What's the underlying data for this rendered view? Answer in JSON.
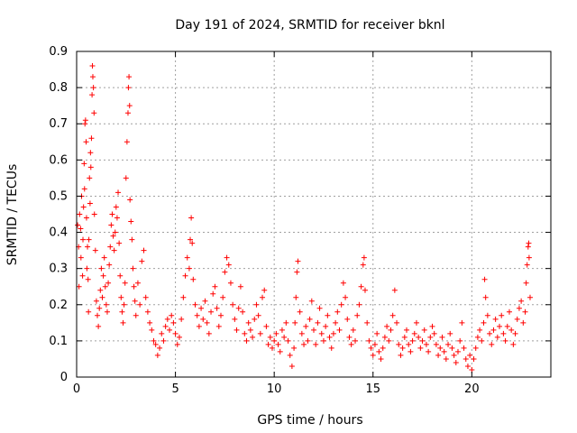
{
  "chart_data": {
    "type": "scatter",
    "title": "Day 191 of 2024, SRMTID for receiver bknl",
    "xlabel": "GPS time / hours",
    "ylabel": "SRMTID / TECUs",
    "xlim": [
      0,
      24
    ],
    "ylim": [
      0,
      0.9
    ],
    "xticks": [
      0,
      5,
      10,
      15,
      20
    ],
    "yticks": [
      0,
      0.1,
      0.2,
      0.3,
      0.4,
      0.5,
      0.6,
      0.7,
      0.8,
      0.9
    ],
    "grid": true,
    "marker": "+",
    "color": "#ff0000",
    "series": [
      {
        "name": "SRMTID",
        "points": [
          [
            0.05,
            0.42
          ],
          [
            0.1,
            0.36
          ],
          [
            0.12,
            0.25
          ],
          [
            0.15,
            0.45
          ],
          [
            0.2,
            0.41
          ],
          [
            0.22,
            0.33
          ],
          [
            0.25,
            0.5
          ],
          [
            0.3,
            0.28
          ],
          [
            0.32,
            0.38
          ],
          [
            0.35,
            0.47
          ],
          [
            0.38,
            0.59
          ],
          [
            0.4,
            0.52
          ],
          [
            0.42,
            0.7
          ],
          [
            0.45,
            0.71
          ],
          [
            0.48,
            0.65
          ],
          [
            0.5,
            0.44
          ],
          [
            0.52,
            0.3
          ],
          [
            0.55,
            0.36
          ],
          [
            0.58,
            0.27
          ],
          [
            0.6,
            0.18
          ],
          [
            0.62,
            0.38
          ],
          [
            0.65,
            0.55
          ],
          [
            0.68,
            0.48
          ],
          [
            0.7,
            0.62
          ],
          [
            0.72,
            0.58
          ],
          [
            0.75,
            0.66
          ],
          [
            0.78,
            0.78
          ],
          [
            0.8,
            0.86
          ],
          [
            0.82,
            0.83
          ],
          [
            0.85,
            0.8
          ],
          [
            0.88,
            0.73
          ],
          [
            0.9,
            0.45
          ],
          [
            0.95,
            0.35
          ],
          [
            1.0,
            0.21
          ],
          [
            1.05,
            0.17
          ],
          [
            1.1,
            0.14
          ],
          [
            1.15,
            0.19
          ],
          [
            1.2,
            0.24
          ],
          [
            1.25,
            0.3
          ],
          [
            1.3,
            0.22
          ],
          [
            1.35,
            0.28
          ],
          [
            1.4,
            0.33
          ],
          [
            1.45,
            0.25
          ],
          [
            1.5,
            0.2
          ],
          [
            1.55,
            0.18
          ],
          [
            1.6,
            0.26
          ],
          [
            1.65,
            0.31
          ],
          [
            1.7,
            0.36
          ],
          [
            1.75,
            0.42
          ],
          [
            1.8,
            0.45
          ],
          [
            1.85,
            0.39
          ],
          [
            1.9,
            0.35
          ],
          [
            1.95,
            0.4
          ],
          [
            2.0,
            0.47
          ],
          [
            2.05,
            0.44
          ],
          [
            2.1,
            0.51
          ],
          [
            2.15,
            0.37
          ],
          [
            2.2,
            0.28
          ],
          [
            2.25,
            0.22
          ],
          [
            2.3,
            0.18
          ],
          [
            2.35,
            0.15
          ],
          [
            2.4,
            0.2
          ],
          [
            2.45,
            0.26
          ],
          [
            2.5,
            0.55
          ],
          [
            2.55,
            0.65
          ],
          [
            2.6,
            0.73
          ],
          [
            2.62,
            0.8
          ],
          [
            2.65,
            0.83
          ],
          [
            2.68,
            0.75
          ],
          [
            2.7,
            0.49
          ],
          [
            2.75,
            0.43
          ],
          [
            2.8,
            0.38
          ],
          [
            2.85,
            0.3
          ],
          [
            2.9,
            0.25
          ],
          [
            2.95,
            0.21
          ],
          [
            3.0,
            0.17
          ],
          [
            3.1,
            0.26
          ],
          [
            3.2,
            0.2
          ],
          [
            3.3,
            0.32
          ],
          [
            3.4,
            0.35
          ],
          [
            3.5,
            0.22
          ],
          [
            3.6,
            0.18
          ],
          [
            3.7,
            0.15
          ],
          [
            3.8,
            0.13
          ],
          [
            3.9,
            0.1
          ],
          [
            4.0,
            0.09
          ],
          [
            4.1,
            0.06
          ],
          [
            4.2,
            0.08
          ],
          [
            4.3,
            0.12
          ],
          [
            4.4,
            0.1
          ],
          [
            4.5,
            0.14
          ],
          [
            4.6,
            0.16
          ],
          [
            4.7,
            0.13
          ],
          [
            4.8,
            0.17
          ],
          [
            4.9,
            0.15
          ],
          [
            5.0,
            0.12
          ],
          [
            5.1,
            0.09
          ],
          [
            5.2,
            0.11
          ],
          [
            5.3,
            0.16
          ],
          [
            5.4,
            0.22
          ],
          [
            5.5,
            0.28
          ],
          [
            5.6,
            0.33
          ],
          [
            5.7,
            0.3
          ],
          [
            5.75,
            0.38
          ],
          [
            5.8,
            0.44
          ],
          [
            5.85,
            0.37
          ],
          [
            5.9,
            0.27
          ],
          [
            6.0,
            0.2
          ],
          [
            6.1,
            0.17
          ],
          [
            6.2,
            0.14
          ],
          [
            6.3,
            0.19
          ],
          [
            6.4,
            0.16
          ],
          [
            6.5,
            0.21
          ],
          [
            6.6,
            0.15
          ],
          [
            6.7,
            0.12
          ],
          [
            6.8,
            0.18
          ],
          [
            6.9,
            0.23
          ],
          [
            7.0,
            0.25
          ],
          [
            7.1,
            0.19
          ],
          [
            7.2,
            0.14
          ],
          [
            7.3,
            0.17
          ],
          [
            7.4,
            0.22
          ],
          [
            7.5,
            0.29
          ],
          [
            7.6,
            0.33
          ],
          [
            7.7,
            0.31
          ],
          [
            7.8,
            0.26
          ],
          [
            7.9,
            0.2
          ],
          [
            8.0,
            0.16
          ],
          [
            8.1,
            0.13
          ],
          [
            8.2,
            0.19
          ],
          [
            8.3,
            0.25
          ],
          [
            8.4,
            0.18
          ],
          [
            8.5,
            0.12
          ],
          [
            8.6,
            0.1
          ],
          [
            8.7,
            0.15
          ],
          [
            8.8,
            0.13
          ],
          [
            8.9,
            0.11
          ],
          [
            9.0,
            0.16
          ],
          [
            9.1,
            0.2
          ],
          [
            9.2,
            0.17
          ],
          [
            9.3,
            0.12
          ],
          [
            9.4,
            0.22
          ],
          [
            9.5,
            0.24
          ],
          [
            9.6,
            0.14
          ],
          [
            9.7,
            0.09
          ],
          [
            9.8,
            0.11
          ],
          [
            9.9,
            0.08
          ],
          [
            10.0,
            0.1
          ],
          [
            10.1,
            0.12
          ],
          [
            10.2,
            0.09
          ],
          [
            10.3,
            0.07
          ],
          [
            10.4,
            0.13
          ],
          [
            10.5,
            0.11
          ],
          [
            10.6,
            0.15
          ],
          [
            10.7,
            0.1
          ],
          [
            10.8,
            0.06
          ],
          [
            10.9,
            0.03
          ],
          [
            11.0,
            0.08
          ],
          [
            11.05,
            0.15
          ],
          [
            11.1,
            0.22
          ],
          [
            11.15,
            0.29
          ],
          [
            11.2,
            0.32
          ],
          [
            11.3,
            0.18
          ],
          [
            11.4,
            0.12
          ],
          [
            11.5,
            0.09
          ],
          [
            11.6,
            0.14
          ],
          [
            11.7,
            0.1
          ],
          [
            11.8,
            0.16
          ],
          [
            11.9,
            0.21
          ],
          [
            12.0,
            0.13
          ],
          [
            12.1,
            0.09
          ],
          [
            12.2,
            0.15
          ],
          [
            12.3,
            0.19
          ],
          [
            12.4,
            0.12
          ],
          [
            12.5,
            0.1
          ],
          [
            12.6,
            0.14
          ],
          [
            12.7,
            0.17
          ],
          [
            12.8,
            0.11
          ],
          [
            12.9,
            0.08
          ],
          [
            13.0,
            0.12
          ],
          [
            13.1,
            0.15
          ],
          [
            13.2,
            0.18
          ],
          [
            13.3,
            0.13
          ],
          [
            13.4,
            0.2
          ],
          [
            13.5,
            0.26
          ],
          [
            13.6,
            0.22
          ],
          [
            13.7,
            0.16
          ],
          [
            13.8,
            0.11
          ],
          [
            13.9,
            0.09
          ],
          [
            14.0,
            0.13
          ],
          [
            14.1,
            0.1
          ],
          [
            14.2,
            0.17
          ],
          [
            14.3,
            0.2
          ],
          [
            14.4,
            0.25
          ],
          [
            14.5,
            0.31
          ],
          [
            14.55,
            0.33
          ],
          [
            14.6,
            0.24
          ],
          [
            14.7,
            0.15
          ],
          [
            14.8,
            0.1
          ],
          [
            14.9,
            0.08
          ],
          [
            15.0,
            0.06
          ],
          [
            15.1,
            0.09
          ],
          [
            15.2,
            0.12
          ],
          [
            15.3,
            0.07
          ],
          [
            15.4,
            0.05
          ],
          [
            15.5,
            0.08
          ],
          [
            15.6,
            0.11
          ],
          [
            15.7,
            0.14
          ],
          [
            15.8,
            0.1
          ],
          [
            15.9,
            0.13
          ],
          [
            16.0,
            0.17
          ],
          [
            16.1,
            0.24
          ],
          [
            16.2,
            0.15
          ],
          [
            16.3,
            0.09
          ],
          [
            16.4,
            0.06
          ],
          [
            16.5,
            0.08
          ],
          [
            16.6,
            0.11
          ],
          [
            16.7,
            0.13
          ],
          [
            16.8,
            0.09
          ],
          [
            16.9,
            0.07
          ],
          [
            17.0,
            0.1
          ],
          [
            17.1,
            0.12
          ],
          [
            17.2,
            0.15
          ],
          [
            17.3,
            0.11
          ],
          [
            17.4,
            0.08
          ],
          [
            17.5,
            0.1
          ],
          [
            17.6,
            0.13
          ],
          [
            17.7,
            0.09
          ],
          [
            17.8,
            0.07
          ],
          [
            17.9,
            0.11
          ],
          [
            18.0,
            0.14
          ],
          [
            18.1,
            0.12
          ],
          [
            18.2,
            0.09
          ],
          [
            18.3,
            0.06
          ],
          [
            18.4,
            0.08
          ],
          [
            18.5,
            0.11
          ],
          [
            18.6,
            0.07
          ],
          [
            18.7,
            0.05
          ],
          [
            18.8,
            0.09
          ],
          [
            18.9,
            0.12
          ],
          [
            19.0,
            0.08
          ],
          [
            19.1,
            0.06
          ],
          [
            19.2,
            0.04
          ],
          [
            19.3,
            0.07
          ],
          [
            19.4,
            0.1
          ],
          [
            19.5,
            0.15
          ],
          [
            19.6,
            0.08
          ],
          [
            19.7,
            0.05
          ],
          [
            19.8,
            0.03
          ],
          [
            19.9,
            0.06
          ],
          [
            20.0,
            0.02
          ],
          [
            20.1,
            0.05
          ],
          [
            20.2,
            0.08
          ],
          [
            20.3,
            0.11
          ],
          [
            20.4,
            0.13
          ],
          [
            20.5,
            0.1
          ],
          [
            20.6,
            0.15
          ],
          [
            20.65,
            0.27
          ],
          [
            20.7,
            0.22
          ],
          [
            20.8,
            0.17
          ],
          [
            20.9,
            0.12
          ],
          [
            21.0,
            0.09
          ],
          [
            21.1,
            0.13
          ],
          [
            21.2,
            0.16
          ],
          [
            21.3,
            0.11
          ],
          [
            21.4,
            0.14
          ],
          [
            21.5,
            0.17
          ],
          [
            21.6,
            0.12
          ],
          [
            21.7,
            0.1
          ],
          [
            21.8,
            0.14
          ],
          [
            21.9,
            0.18
          ],
          [
            22.0,
            0.13
          ],
          [
            22.1,
            0.09
          ],
          [
            22.2,
            0.12
          ],
          [
            22.3,
            0.16
          ],
          [
            22.4,
            0.19
          ],
          [
            22.5,
            0.21
          ],
          [
            22.6,
            0.15
          ],
          [
            22.7,
            0.18
          ],
          [
            22.75,
            0.26
          ],
          [
            22.8,
            0.31
          ],
          [
            22.85,
            0.36
          ],
          [
            22.88,
            0.37
          ],
          [
            22.9,
            0.33
          ],
          [
            22.95,
            0.22
          ]
        ]
      }
    ]
  }
}
